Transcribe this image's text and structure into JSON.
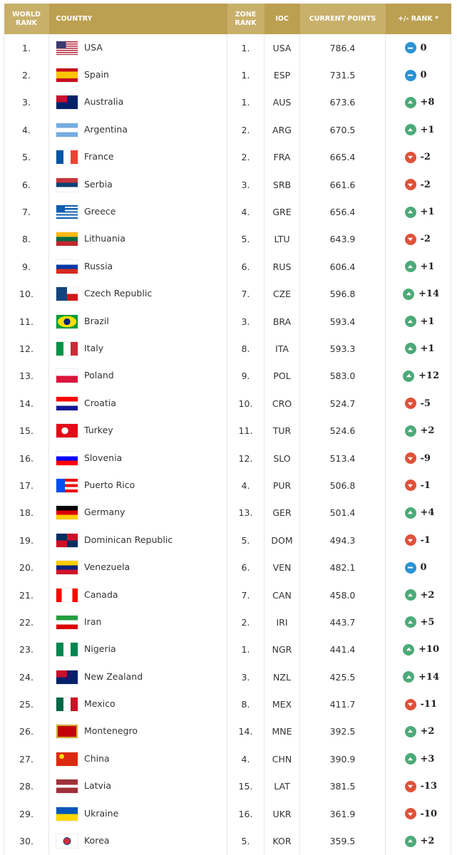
{
  "headers": {
    "world_rank": "WORLD RANK",
    "country": "COUNTRY",
    "zone_rank": "ZONE RANK",
    "ioc": "IOC",
    "points": "CURRENT POINTS",
    "change": "+/- RANK *"
  },
  "colors": {
    "up": "#4caa78",
    "down": "#e0513a",
    "same": "#2a93d5",
    "header_light": "#c8b06b",
    "header_dark": "#bba052"
  },
  "rows": [
    {
      "rank": "1.",
      "country": "USA",
      "zone": "1.",
      "ioc": "USA",
      "points": "786.4",
      "trend": "same",
      "change": "0"
    },
    {
      "rank": "2.",
      "country": "Spain",
      "zone": "1.",
      "ioc": "ESP",
      "points": "731.5",
      "trend": "same",
      "change": "0"
    },
    {
      "rank": "3.",
      "country": "Australia",
      "zone": "1.",
      "ioc": "AUS",
      "points": "673.6",
      "trend": "up",
      "change": "+8"
    },
    {
      "rank": "4.",
      "country": "Argentina",
      "zone": "2.",
      "ioc": "ARG",
      "points": "670.5",
      "trend": "up",
      "change": "+1"
    },
    {
      "rank": "5.",
      "country": "France",
      "zone": "2.",
      "ioc": "FRA",
      "points": "665.4",
      "trend": "down",
      "change": "-2"
    },
    {
      "rank": "6.",
      "country": "Serbia",
      "zone": "3.",
      "ioc": "SRB",
      "points": "661.6",
      "trend": "down",
      "change": "-2"
    },
    {
      "rank": "7.",
      "country": "Greece",
      "zone": "4.",
      "ioc": "GRE",
      "points": "656.4",
      "trend": "up",
      "change": "+1"
    },
    {
      "rank": "8.",
      "country": "Lithuania",
      "zone": "5.",
      "ioc": "LTU",
      "points": "643.9",
      "trend": "down",
      "change": "-2"
    },
    {
      "rank": "9.",
      "country": "Russia",
      "zone": "6.",
      "ioc": "RUS",
      "points": "606.4",
      "trend": "up",
      "change": "+1"
    },
    {
      "rank": "10.",
      "country": "Czech Republic",
      "zone": "7.",
      "ioc": "CZE",
      "points": "596.8",
      "trend": "up",
      "change": "+14"
    },
    {
      "rank": "11.",
      "country": "Brazil",
      "zone": "3.",
      "ioc": "BRA",
      "points": "593.4",
      "trend": "up",
      "change": "+1"
    },
    {
      "rank": "12.",
      "country": "Italy",
      "zone": "8.",
      "ioc": "ITA",
      "points": "593.3",
      "trend": "up",
      "change": "+1"
    },
    {
      "rank": "13.",
      "country": "Poland",
      "zone": "9.",
      "ioc": "POL",
      "points": "583.0",
      "trend": "up",
      "change": "+12"
    },
    {
      "rank": "14.",
      "country": "Croatia",
      "zone": "10.",
      "ioc": "CRO",
      "points": "524.7",
      "trend": "down",
      "change": "-5"
    },
    {
      "rank": "15.",
      "country": "Turkey",
      "zone": "11.",
      "ioc": "TUR",
      "points": "524.6",
      "trend": "up",
      "change": "+2"
    },
    {
      "rank": "16.",
      "country": "Slovenia",
      "zone": "12.",
      "ioc": "SLO",
      "points": "513.4",
      "trend": "down",
      "change": "-9"
    },
    {
      "rank": "17.",
      "country": "Puerto Rico",
      "zone": "4.",
      "ioc": "PUR",
      "points": "506.8",
      "trend": "down",
      "change": "-1"
    },
    {
      "rank": "18.",
      "country": "Germany",
      "zone": "13.",
      "ioc": "GER",
      "points": "501.4",
      "trend": "up",
      "change": "+4"
    },
    {
      "rank": "19.",
      "country": "Dominican Republic",
      "zone": "5.",
      "ioc": "DOM",
      "points": "494.3",
      "trend": "down",
      "change": "-1"
    },
    {
      "rank": "20.",
      "country": "Venezuela",
      "zone": "6.",
      "ioc": "VEN",
      "points": "482.1",
      "trend": "same",
      "change": "0"
    },
    {
      "rank": "21.",
      "country": "Canada",
      "zone": "7.",
      "ioc": "CAN",
      "points": "458.0",
      "trend": "up",
      "change": "+2"
    },
    {
      "rank": "22.",
      "country": "Iran",
      "zone": "2.",
      "ioc": "IRI",
      "points": "443.7",
      "trend": "up",
      "change": "+5"
    },
    {
      "rank": "23.",
      "country": "Nigeria",
      "zone": "1.",
      "ioc": "NGR",
      "points": "441.4",
      "trend": "up",
      "change": "+10"
    },
    {
      "rank": "24.",
      "country": "New Zealand",
      "zone": "3.",
      "ioc": "NZL",
      "points": "425.5",
      "trend": "up",
      "change": "+14"
    },
    {
      "rank": "25.",
      "country": "Mexico",
      "zone": "8.",
      "ioc": "MEX",
      "points": "411.7",
      "trend": "down",
      "change": "-11"
    },
    {
      "rank": "26.",
      "country": "Montenegro",
      "zone": "14.",
      "ioc": "MNE",
      "points": "392.5",
      "trend": "up",
      "change": "+2"
    },
    {
      "rank": "27.",
      "country": "China",
      "zone": "4.",
      "ioc": "CHN",
      "points": "390.9",
      "trend": "up",
      "change": "+3"
    },
    {
      "rank": "28.",
      "country": "Latvia",
      "zone": "15.",
      "ioc": "LAT",
      "points": "381.5",
      "trend": "down",
      "change": "-13"
    },
    {
      "rank": "29.",
      "country": "Ukraine",
      "zone": "16.",
      "ioc": "UKR",
      "points": "361.9",
      "trend": "down",
      "change": "-10"
    },
    {
      "rank": "30.",
      "country": "Korea",
      "zone": "5.",
      "ioc": "KOR",
      "points": "359.5",
      "trend": "up",
      "change": "+2"
    }
  ]
}
